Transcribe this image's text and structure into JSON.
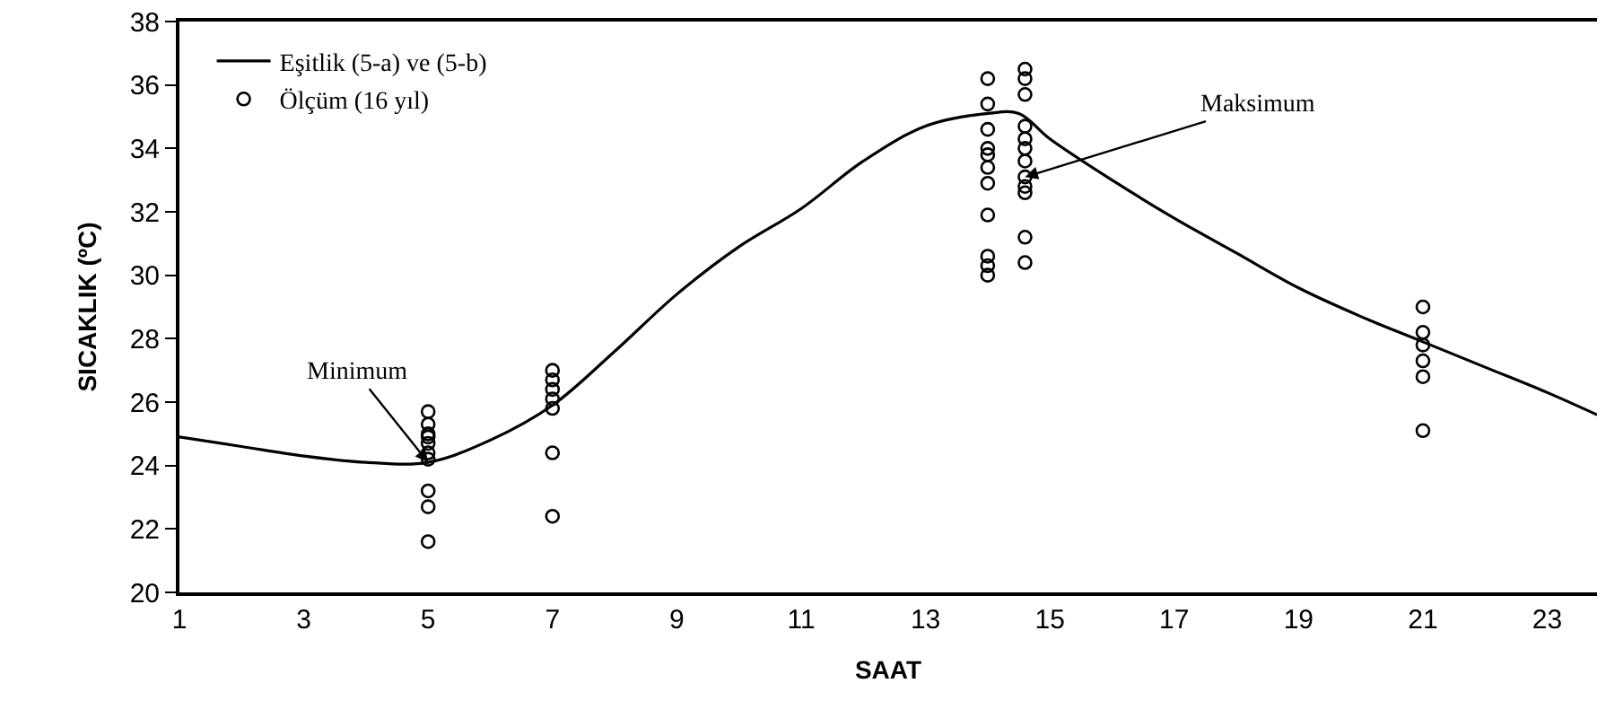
{
  "chart_data": {
    "type": "line",
    "xlabel": "SAAT",
    "ylabel": "SICAKLIK (ºC)",
    "xlim": [
      1,
      23.8
    ],
    "xticks": [
      1,
      3,
      5,
      7,
      9,
      11,
      13,
      15,
      17,
      19,
      21,
      23
    ],
    "ylim": [
      20,
      38
    ],
    "yticks": [
      20,
      22,
      24,
      26,
      28,
      30,
      32,
      34,
      36,
      38
    ],
    "legend": "top left",
    "series": [
      {
        "name": "Eşitlik (5-a) ve (5-b)",
        "color": "#000000",
        "line_style": "solid",
        "marker": "none",
        "x": [
          1,
          2,
          3,
          4,
          5,
          6,
          7,
          8,
          9,
          10,
          11,
          12,
          13,
          14,
          14.5,
          15,
          16,
          17,
          18,
          19,
          20,
          21,
          22,
          23,
          23.8
        ],
        "values": [
          24.9,
          24.6,
          24.3,
          24.1,
          24.1,
          24.8,
          25.9,
          27.6,
          29.4,
          30.9,
          32.1,
          33.6,
          34.7,
          35.1,
          35.1,
          34.3,
          33.0,
          31.8,
          30.7,
          29.6,
          28.7,
          27.9,
          27.1,
          26.3,
          25.6
        ]
      },
      {
        "name": "Ölçüm (16 yıl)",
        "type": "scatter",
        "color": "#000000",
        "marker": "circle",
        "x": [
          5,
          5,
          5,
          5,
          5,
          5,
          5,
          5,
          5,
          5,
          7,
          7,
          7,
          7,
          7,
          7,
          7,
          14,
          14,
          14,
          14,
          14,
          14,
          14,
          14,
          14,
          14,
          14,
          14.6,
          14.6,
          14.6,
          14.6,
          14.6,
          14.6,
          14.6,
          14.6,
          14.6,
          14.6,
          14.6,
          14.6,
          21,
          21,
          21,
          21,
          21,
          21
        ],
        "values": [
          25.7,
          25.3,
          25.0,
          24.7,
          24.4,
          24.2,
          23.2,
          22.7,
          21.6,
          24.9,
          27.0,
          26.7,
          26.4,
          26.1,
          25.8,
          24.4,
          22.4,
          36.2,
          35.4,
          34.6,
          34.0,
          33.8,
          33.4,
          32.9,
          31.9,
          30.6,
          30.3,
          30.0,
          36.5,
          36.2,
          35.7,
          34.7,
          34.3,
          34.0,
          33.6,
          33.1,
          32.8,
          32.6,
          31.2,
          30.4,
          29.0,
          28.2,
          27.8,
          27.3,
          26.8,
          25.1
        ]
      }
    ],
    "annotations": [
      {
        "text": "Minimum",
        "x": 5,
        "y": 24.1
      },
      {
        "text": "Maksimum",
        "x": 14.6,
        "y": 33.1
      }
    ]
  }
}
